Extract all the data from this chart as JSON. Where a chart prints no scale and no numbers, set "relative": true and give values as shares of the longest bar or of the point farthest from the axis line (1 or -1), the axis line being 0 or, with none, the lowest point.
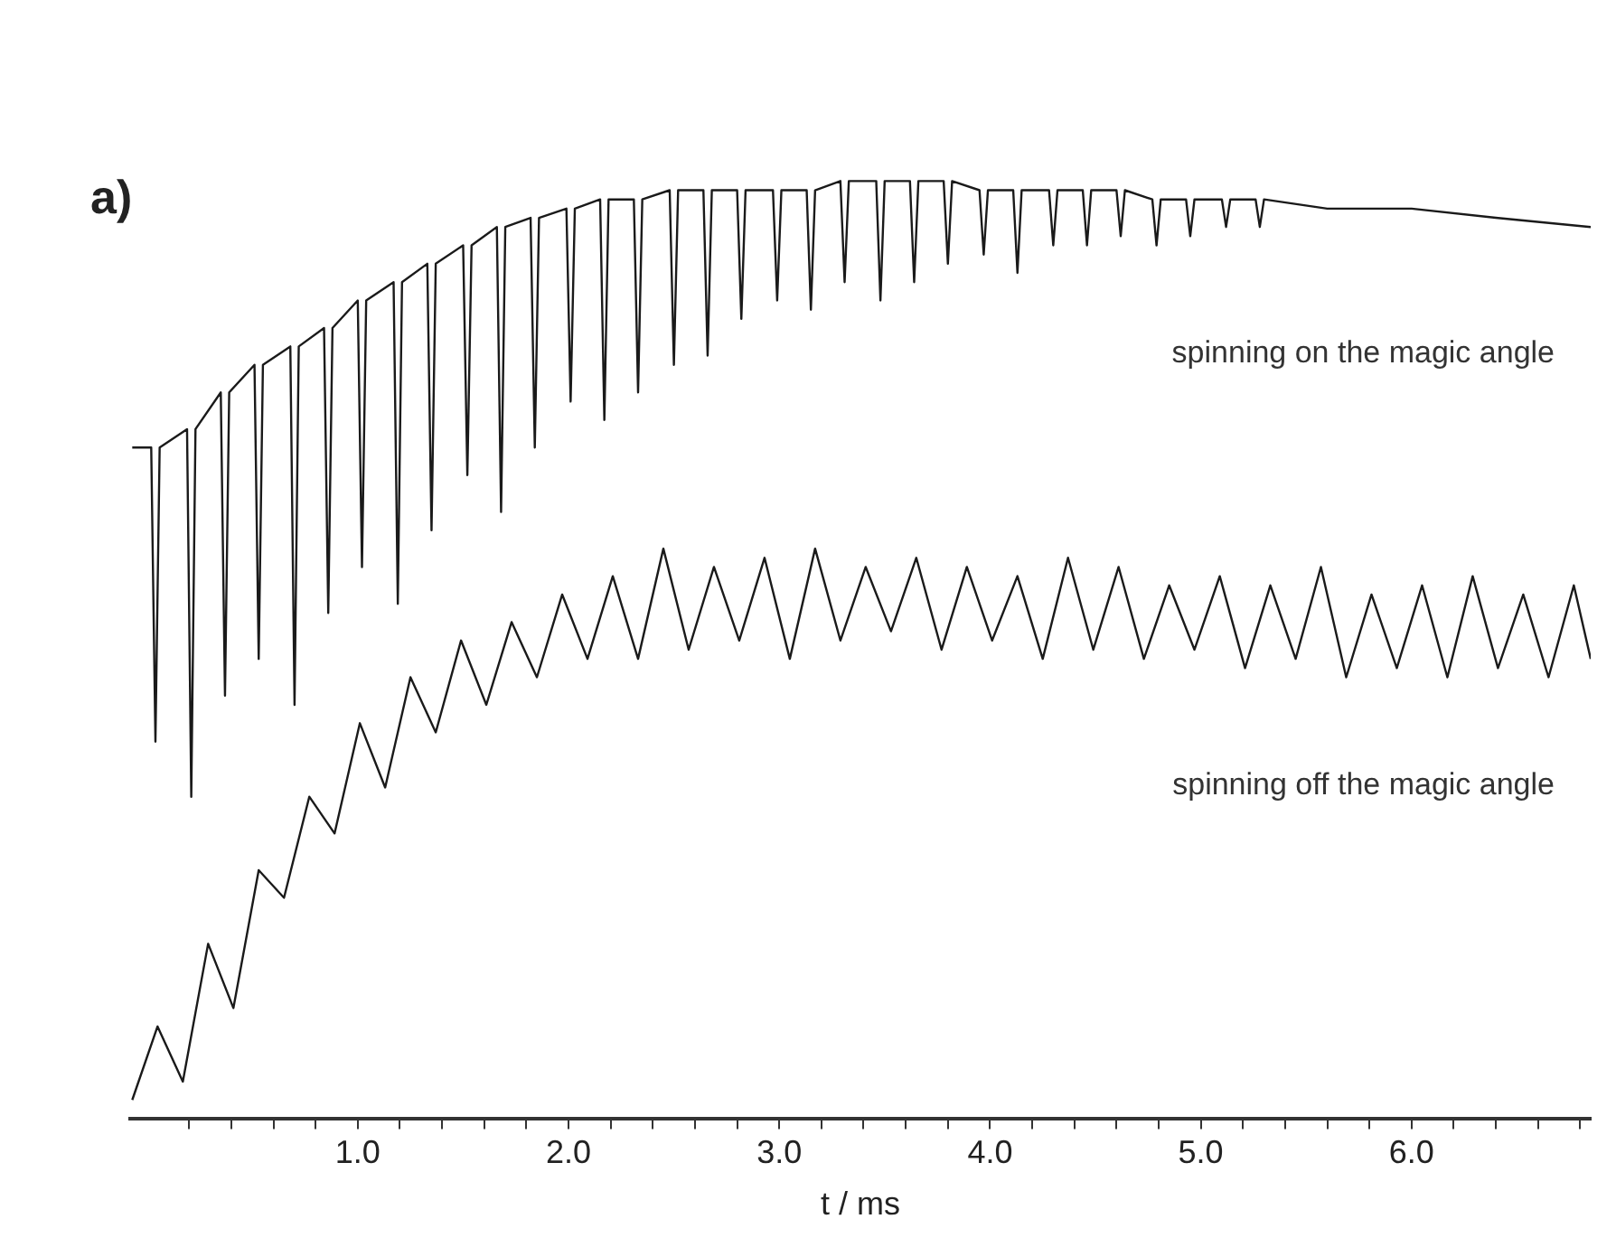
{
  "chart_data": {
    "type": "line",
    "title": "a)",
    "xlabel": "t / ms",
    "relative": true,
    "marker": "none",
    "line_style": "solid",
    "legend": false,
    "xlim": [
      -0.08,
      6.85
    ],
    "xticks": [
      {
        "value": 0.2,
        "label": null
      },
      {
        "value": 0.4,
        "label": null
      },
      {
        "value": 0.6,
        "label": null
      },
      {
        "value": 0.8,
        "label": null
      },
      {
        "value": 1,
        "label": "1.0"
      },
      {
        "value": 1.2,
        "label": null
      },
      {
        "value": 1.4,
        "label": null
      },
      {
        "value": 1.6,
        "label": null
      },
      {
        "value": 1.8,
        "label": null
      },
      {
        "value": 2,
        "label": "2.0"
      },
      {
        "value": 2.2,
        "label": null
      },
      {
        "value": 2.4,
        "label": null
      },
      {
        "value": 2.6,
        "label": null
      },
      {
        "value": 2.8,
        "label": null
      },
      {
        "value": 3,
        "label": "3.0"
      },
      {
        "value": 3.2,
        "label": null
      },
      {
        "value": 3.4,
        "label": null
      },
      {
        "value": 3.6,
        "label": null
      },
      {
        "value": 3.8,
        "label": null
      },
      {
        "value": 4,
        "label": "4.0"
      },
      {
        "value": 4.2,
        "label": null
      },
      {
        "value": 4.4,
        "label": null
      },
      {
        "value": 4.6,
        "label": null
      },
      {
        "value": 4.8,
        "label": null
      },
      {
        "value": 5,
        "label": "5.0"
      },
      {
        "value": 5.2,
        "label": null
      },
      {
        "value": 5.4,
        "label": null
      },
      {
        "value": 5.6,
        "label": null
      },
      {
        "value": 5.8,
        "label": null
      },
      {
        "value": 6,
        "label": "6.0"
      },
      {
        "value": 6.2,
        "label": null
      },
      {
        "value": 6.4,
        "label": null
      },
      {
        "value": 6.6,
        "label": null
      },
      {
        "value": 6.8,
        "label": null
      }
    ],
    "series": [
      {
        "name": "spinning on the magic angle",
        "color": "#1a1a1a",
        "x": [
          -0.07,
          0.02,
          0.04,
          0.06,
          0.19,
          0.21,
          0.23,
          0.35,
          0.37,
          0.39,
          0.51,
          0.53,
          0.55,
          0.68,
          0.7,
          0.72,
          0.84,
          0.86,
          0.88,
          1.0,
          1.02,
          1.04,
          1.17,
          1.19,
          1.21,
          1.33,
          1.35,
          1.37,
          1.5,
          1.52,
          1.54,
          1.66,
          1.68,
          1.7,
          1.82,
          1.84,
          1.86,
          1.99,
          2.01,
          2.03,
          2.15,
          2.17,
          2.19,
          2.31,
          2.33,
          2.35,
          2.48,
          2.5,
          2.52,
          2.64,
          2.66,
          2.68,
          2.8,
          2.82,
          2.84,
          2.97,
          2.99,
          3.01,
          3.13,
          3.15,
          3.17,
          3.29,
          3.31,
          3.33,
          3.46,
          3.48,
          3.5,
          3.62,
          3.64,
          3.66,
          3.78,
          3.8,
          3.82,
          3.95,
          3.97,
          3.99,
          4.11,
          4.13,
          4.15,
          4.28,
          4.3,
          4.32,
          4.44,
          4.46,
          4.48,
          4.6,
          4.62,
          4.64,
          4.77,
          4.79,
          4.81,
          4.93,
          4.95,
          4.97,
          5.1,
          5.12,
          5.14,
          5.26,
          5.28,
          5.3,
          5.6,
          6.0,
          6.4,
          6.85
        ],
        "values": [
          0.71,
          0.71,
          0.39,
          0.71,
          0.73,
          0.33,
          0.73,
          0.77,
          0.44,
          0.77,
          0.8,
          0.48,
          0.8,
          0.82,
          0.43,
          0.82,
          0.84,
          0.53,
          0.84,
          0.87,
          0.58,
          0.87,
          0.89,
          0.54,
          0.89,
          0.91,
          0.62,
          0.91,
          0.93,
          0.68,
          0.93,
          0.95,
          0.64,
          0.95,
          0.96,
          0.71,
          0.96,
          0.97,
          0.76,
          0.97,
          0.98,
          0.74,
          0.98,
          0.98,
          0.77,
          0.98,
          0.99,
          0.8,
          0.99,
          0.99,
          0.81,
          0.99,
          0.99,
          0.85,
          0.99,
          0.99,
          0.87,
          0.99,
          0.99,
          0.86,
          0.99,
          1.0,
          0.89,
          1.0,
          1.0,
          0.87,
          1.0,
          1.0,
          0.89,
          1.0,
          1.0,
          0.91,
          1.0,
          0.99,
          0.92,
          0.99,
          0.99,
          0.9,
          0.99,
          0.99,
          0.93,
          0.99,
          0.99,
          0.93,
          0.99,
          0.99,
          0.94,
          0.99,
          0.98,
          0.93,
          0.98,
          0.98,
          0.94,
          0.98,
          0.98,
          0.95,
          0.98,
          0.98,
          0.95,
          0.98,
          0.97,
          0.97,
          0.96,
          0.95
        ]
      },
      {
        "name": "spinning off the magic angle",
        "color": "#1a1a1a",
        "x": [
          -0.07,
          0.05,
          0.17,
          0.29,
          0.41,
          0.53,
          0.65,
          0.77,
          0.89,
          1.01,
          1.13,
          1.25,
          1.37,
          1.49,
          1.61,
          1.73,
          1.85,
          1.97,
          2.09,
          2.21,
          2.33,
          2.45,
          2.57,
          2.69,
          2.81,
          2.93,
          3.05,
          3.17,
          3.29,
          3.41,
          3.53,
          3.65,
          3.77,
          3.89,
          4.01,
          4.13,
          4.25,
          4.37,
          4.49,
          4.61,
          4.73,
          4.85,
          4.97,
          5.09,
          5.21,
          5.33,
          5.45,
          5.57,
          5.69,
          5.81,
          5.93,
          6.05,
          6.17,
          6.29,
          6.41,
          6.53,
          6.65,
          6.77,
          6.85
        ],
        "values": [
          0.0,
          0.08,
          0.02,
          0.17,
          0.1,
          0.25,
          0.22,
          0.33,
          0.29,
          0.41,
          0.34,
          0.46,
          0.4,
          0.5,
          0.43,
          0.52,
          0.46,
          0.55,
          0.48,
          0.57,
          0.48,
          0.6,
          0.49,
          0.58,
          0.5,
          0.59,
          0.48,
          0.6,
          0.5,
          0.58,
          0.51,
          0.59,
          0.49,
          0.58,
          0.5,
          0.57,
          0.48,
          0.59,
          0.49,
          0.58,
          0.48,
          0.56,
          0.49,
          0.57,
          0.47,
          0.56,
          0.48,
          0.58,
          0.46,
          0.55,
          0.47,
          0.56,
          0.46,
          0.57,
          0.47,
          0.55,
          0.46,
          0.56,
          0.48
        ]
      }
    ]
  }
}
